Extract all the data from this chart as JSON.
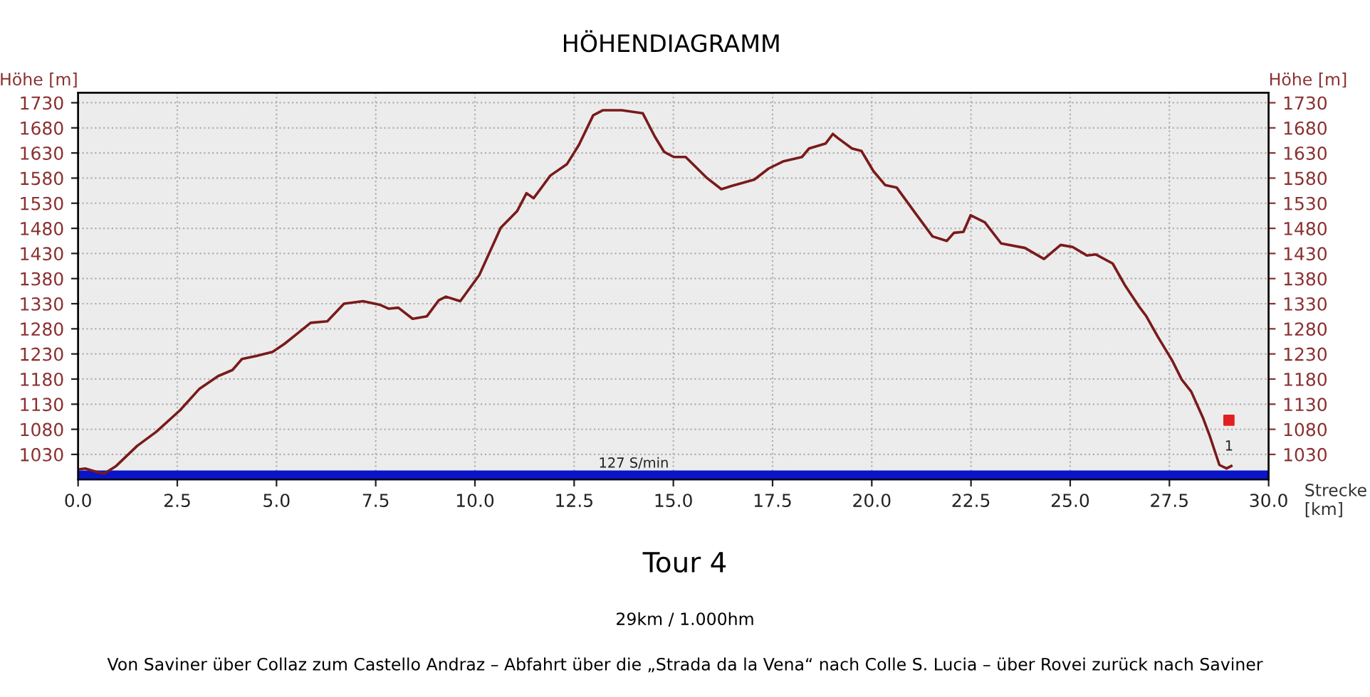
{
  "chart_data": {
    "type": "line",
    "title": "HÖHENDIAGRAMM",
    "ylabel": "Höhe [m]",
    "y2label": "Höhe [m]",
    "xlabel": "Strecke\n[km]",
    "annotations": [
      "Tour 4",
      "29km / 1.000hm",
      "Von Saviner über Collaz zum Castello Andraz – Abfahrt über die „Strada da la Vena“ nach Colle S. Lucia – über Rovei zurück nach Saviner",
      {
        "text": "127 S/min",
        "x": 14,
        "y": 998
      },
      {
        "text": "1",
        "x": 29,
        "y": 1098
      }
    ],
    "series": [
      {
        "color": "#7a1a1a",
        "x": [
          0,
          0.18,
          0.48,
          0.66,
          0.96,
          1.49,
          1.97,
          2.57,
          3.05,
          3.53,
          3.89,
          4.13,
          4.49,
          4.9,
          5.2,
          5.5,
          5.86,
          6.28,
          6.7,
          7.18,
          7.6,
          7.83,
          8.07,
          8.43,
          8.79,
          9.09,
          9.27,
          9.63,
          10.11,
          10.65,
          11.06,
          11.3,
          11.48,
          11.9,
          12.32,
          12.62,
          12.98,
          13.22,
          13.7,
          14.23,
          14.53,
          14.77,
          15.01,
          15.31,
          15.85,
          16.21,
          16.45,
          17.04,
          17.4,
          17.76,
          18.24,
          18.42,
          18.84,
          19.02,
          19.14,
          19.5,
          19.74,
          20.04,
          20.34,
          20.63,
          21.11,
          21.53,
          21.89,
          22.07,
          22.31,
          22.49,
          22.85,
          23.26,
          23.86,
          24.34,
          24.76,
          25.06,
          25.42,
          25.65,
          26.07,
          26.37,
          26.73,
          26.91,
          27.21,
          27.57,
          27.81,
          28.05,
          28.34,
          28.52,
          28.76,
          28.94,
          29.06
        ],
        "values": [
          1000,
          1002,
          995,
          992,
          1007,
          1047,
          1075,
          1118,
          1160,
          1186,
          1198,
          1220,
          1226,
          1234,
          1250,
          1269,
          1292,
          1295,
          1330,
          1335,
          1328,
          1320,
          1322,
          1300,
          1305,
          1337,
          1344,
          1335,
          1387,
          1481,
          1514,
          1550,
          1540,
          1585,
          1608,
          1646,
          1705,
          1715,
          1715,
          1709,
          1663,
          1632,
          1622,
          1622,
          1580,
          1558,
          1564,
          1577,
          1599,
          1613,
          1622,
          1639,
          1649,
          1668,
          1660,
          1639,
          1634,
          1594,
          1566,
          1561,
          1509,
          1464,
          1455,
          1471,
          1473,
          1506,
          1492,
          1450,
          1441,
          1419,
          1447,
          1443,
          1426,
          1428,
          1410,
          1368,
          1325,
          1306,
          1264,
          1217,
          1179,
          1155,
          1104,
          1066,
          1009,
          1002,
          1007
        ]
      },
      {
        "type": "scatter",
        "color": "#e02020",
        "marker": "square",
        "x": [
          29
        ],
        "values": [
          1098
        ]
      }
    ],
    "bands": [
      {
        "axis": "y",
        "from": 980,
        "to": 998,
        "color": "#0a14c8"
      }
    ],
    "xlim": [
      0,
      30
    ],
    "xticks": [
      {
        "value": 0,
        "label": "0.0"
      },
      {
        "value": 2.5,
        "label": "2.5"
      },
      {
        "value": 5,
        "label": "5.0"
      },
      {
        "value": 7.5,
        "label": "7.5"
      },
      {
        "value": 10,
        "label": "10.0"
      },
      {
        "value": 12.5,
        "label": "12.5"
      },
      {
        "value": 15,
        "label": "15.0"
      },
      {
        "value": 17.5,
        "label": "17.5"
      },
      {
        "value": 20,
        "label": "20.0"
      },
      {
        "value": 22.5,
        "label": "22.5"
      },
      {
        "value": 25,
        "label": "25.0"
      },
      {
        "value": 27.5,
        "label": "27.5"
      },
      {
        "value": 30,
        "label": "30.0"
      }
    ],
    "ylim": [
      980,
      1750
    ],
    "yticks": [
      1030,
      1080,
      1130,
      1180,
      1230,
      1280,
      1330,
      1380,
      1430,
      1480,
      1530,
      1580,
      1630,
      1680,
      1730
    ],
    "y2lim": [
      980,
      1750
    ],
    "y2ticks": [
      1030,
      1080,
      1130,
      1180,
      1230,
      1280,
      1330,
      1380,
      1430,
      1480,
      1530,
      1580,
      1630,
      1680,
      1730
    ],
    "grid": true,
    "legend": false
  }
}
